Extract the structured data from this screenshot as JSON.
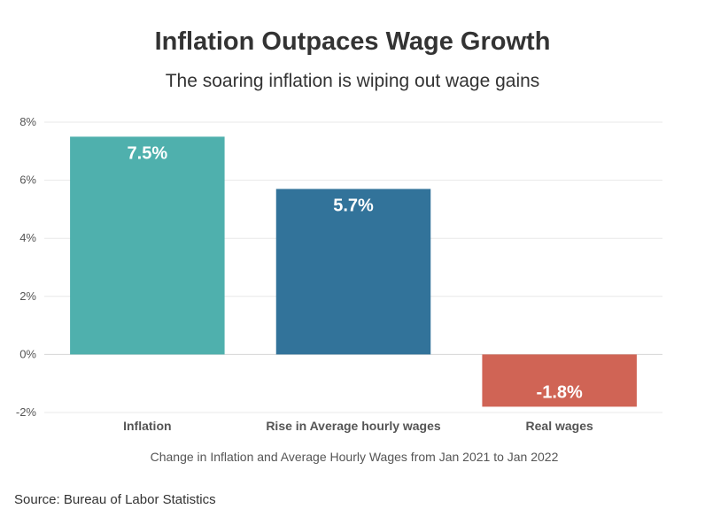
{
  "chart_data": {
    "type": "bar",
    "title": "Inflation Outpaces Wage Growth",
    "subtitle": "The soaring inflation is wiping out wage gains",
    "categories": [
      "Inflation",
      "Rise in Average hourly wages",
      "Real wages"
    ],
    "values": [
      7.5,
      5.7,
      -1.8
    ],
    "data_labels": [
      "7.5%",
      "5.7%",
      "-1.8%"
    ],
    "colors": [
      "#4fb0ad",
      "#32739a",
      "#d06455"
    ],
    "xlabel": "Change in Inflation and Average Hourly Wages from Jan 2021 to Jan 2022",
    "ylabel": "",
    "ylim": [
      -2,
      8
    ],
    "yticks": [
      -2,
      0,
      2,
      4,
      6,
      8
    ],
    "ytick_labels": [
      "-2%",
      "0%",
      "2%",
      "4%",
      "6%",
      "8%"
    ],
    "grid": true,
    "legend": "none"
  },
  "source": "Source: Bureau of Labor Statistics"
}
